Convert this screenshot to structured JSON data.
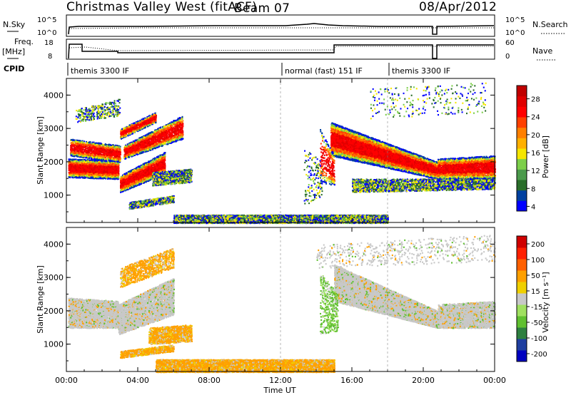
{
  "header": {
    "title": "Christmas Valley West (fitACF)",
    "beam": "Beam 07",
    "date": "08/Apr/2012"
  },
  "top_panels": {
    "nsky_label": "N.Sky",
    "nsearch_label": "N.Search",
    "ticks_left_1": [
      "10^5",
      "10^0"
    ],
    "ticks_right_1": [
      "10^5",
      "10^0"
    ],
    "freq_label_1": "Freq.",
    "freq_label_2": "[MHz]",
    "freq_ticks": [
      "18",
      "8"
    ],
    "nave_label": "Nave",
    "nave_ticks": [
      "60",
      "0"
    ],
    "cpid_label": "CPID",
    "cpid_modes": [
      {
        "label": "themis 3300 IF",
        "start_hour": 0.0
      },
      {
        "label": "normal (fast) 151 IF",
        "start_hour": 12.0
      },
      {
        "label": "themis 3300 IF",
        "start_hour": 18.0
      }
    ]
  },
  "colorbars": {
    "power": {
      "label": "Power [dB]",
      "ticks": [
        "28",
        "24",
        "20",
        "16",
        "12",
        "8",
        "4"
      ],
      "colors": [
        "#0000ff",
        "#0040a0",
        "#2a6e2a",
        "#4b9a4b",
        "#7ccf4a",
        "#f5e600",
        "#ffb000",
        "#ff8000",
        "#ff4000",
        "#ff0000",
        "#e00000",
        "#c00000"
      ]
    },
    "velocity": {
      "label": "Velocity [m s⁻¹]",
      "ticks": [
        "200",
        "100",
        "50",
        "15",
        "-15",
        "-50",
        "-100",
        "-200"
      ],
      "colors": [
        "#0000c0",
        "#1f3fa0",
        "#2e8040",
        "#60c030",
        "#a0e060",
        "#c8c8c8",
        "#f0d000",
        "#ffa000",
        "#ff6000",
        "#ff2000",
        "#d00000"
      ]
    }
  },
  "chart_data": [
    {
      "type": "heatmap",
      "title": "Power",
      "ylabel": "Slant Range [km]",
      "xlabel": "Time UT",
      "x_ticks": [
        "00:00",
        "04:00",
        "08:00",
        "12:00",
        "16:00",
        "20:00",
        "00:00"
      ],
      "y_ticks": [
        "4000",
        "3000",
        "2000",
        "1000"
      ],
      "xlim_hours": [
        0,
        24
      ],
      "ylim_km": [
        180,
        4500
      ]
    },
    {
      "type": "heatmap",
      "title": "Velocity",
      "ylabel": "Slant Range [km]",
      "xlabel": "Time UT",
      "x_ticks": [
        "00:00",
        "04:00",
        "08:00",
        "12:00",
        "16:00",
        "20:00",
        "00:00"
      ],
      "y_ticks": [
        "4000",
        "3000",
        "2000",
        "1000"
      ],
      "xlim_hours": [
        0,
        24
      ],
      "ylim_km": [
        180,
        4500
      ]
    }
  ]
}
